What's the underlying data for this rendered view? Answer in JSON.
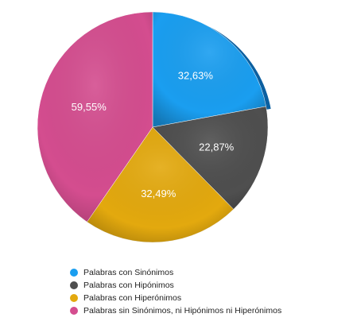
{
  "chart_data": {
    "type": "pie",
    "title": "",
    "slices": [
      {
        "label": "Palabras con Sinónimos",
        "value": 32.63,
        "display": "32,63%",
        "color": "#1a9ef0"
      },
      {
        "label": "Palabras con Hipónimos",
        "value": 22.87,
        "display": "22,87%",
        "color": "#4f4f4f"
      },
      {
        "label": "Palabras con Hiperónimos",
        "value": 32.49,
        "display": "32,49%",
        "color": "#e3a90e"
      },
      {
        "label": "Palabras sin Sinónimos, ni Hipónimos ni Hiperónimos",
        "value": 59.55,
        "display": "59,55%",
        "color": "#d44d8f"
      }
    ],
    "legend_position": "bottom"
  }
}
